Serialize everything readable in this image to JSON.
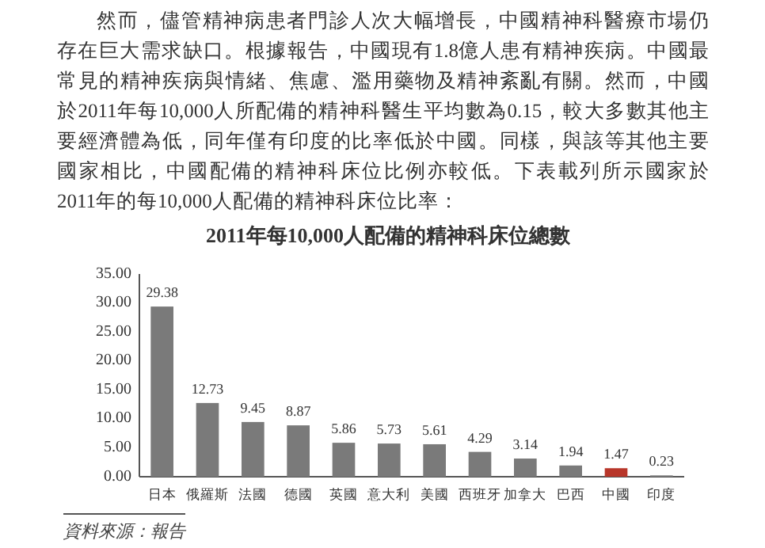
{
  "chart_data": {
    "type": "bar",
    "title": "2011年每10,000人配備的精神科床位總數",
    "categories": [
      "日本",
      "俄羅斯",
      "法國",
      "德國",
      "英國",
      "意大利",
      "美國",
      "西班牙",
      "加拿大",
      "巴西",
      "中國",
      "印度"
    ],
    "values": [
      29.38,
      12.73,
      9.45,
      8.87,
      5.86,
      5.73,
      5.61,
      4.29,
      3.14,
      1.94,
      1.47,
      0.23
    ],
    "colors": [
      "#7a7a7a",
      "#7a7a7a",
      "#7a7a7a",
      "#7a7a7a",
      "#7a7a7a",
      "#7a7a7a",
      "#7a7a7a",
      "#7a7a7a",
      "#7a7a7a",
      "#7a7a7a",
      "#b8362a",
      "#7a7a7a"
    ],
    "ylim": [
      0,
      35
    ],
    "yticks": [
      {
        "value": 0,
        "label": "0.00"
      },
      {
        "value": 5,
        "label": "5.00"
      },
      {
        "value": 10,
        "label": "10.00"
      },
      {
        "value": 15,
        "label": "15.00"
      },
      {
        "value": 20,
        "label": "20.00"
      },
      {
        "value": 25,
        "label": "25.00"
      },
      {
        "value": 30,
        "label": "30.00"
      },
      {
        "value": 35,
        "label": "35.00"
      }
    ],
    "data_labels": true,
    "grid": false,
    "annotations": [
      "然而，儘管精神病患者門診人次大幅增長，中國精神科醫療市場仍存在巨大需求缺口。根據報告，中國現有1.8億人患有精神疾病。中國最常見的精神疾病與情緒、焦慮、濫用藥物及精神紊亂有關。然而，中國於2011年每10,000人所配備的精神科醫生平均數為0.15，較大多數其他主要經濟體為低，同年僅有印度的比率低於中國。同樣，與該等其他主要國家相比，中國配備的精神科床位比例亦較低。下表載列所示國家於2011年的每10,000人配備的精神科床位比率：",
      "資料來源：報告"
    ]
  }
}
